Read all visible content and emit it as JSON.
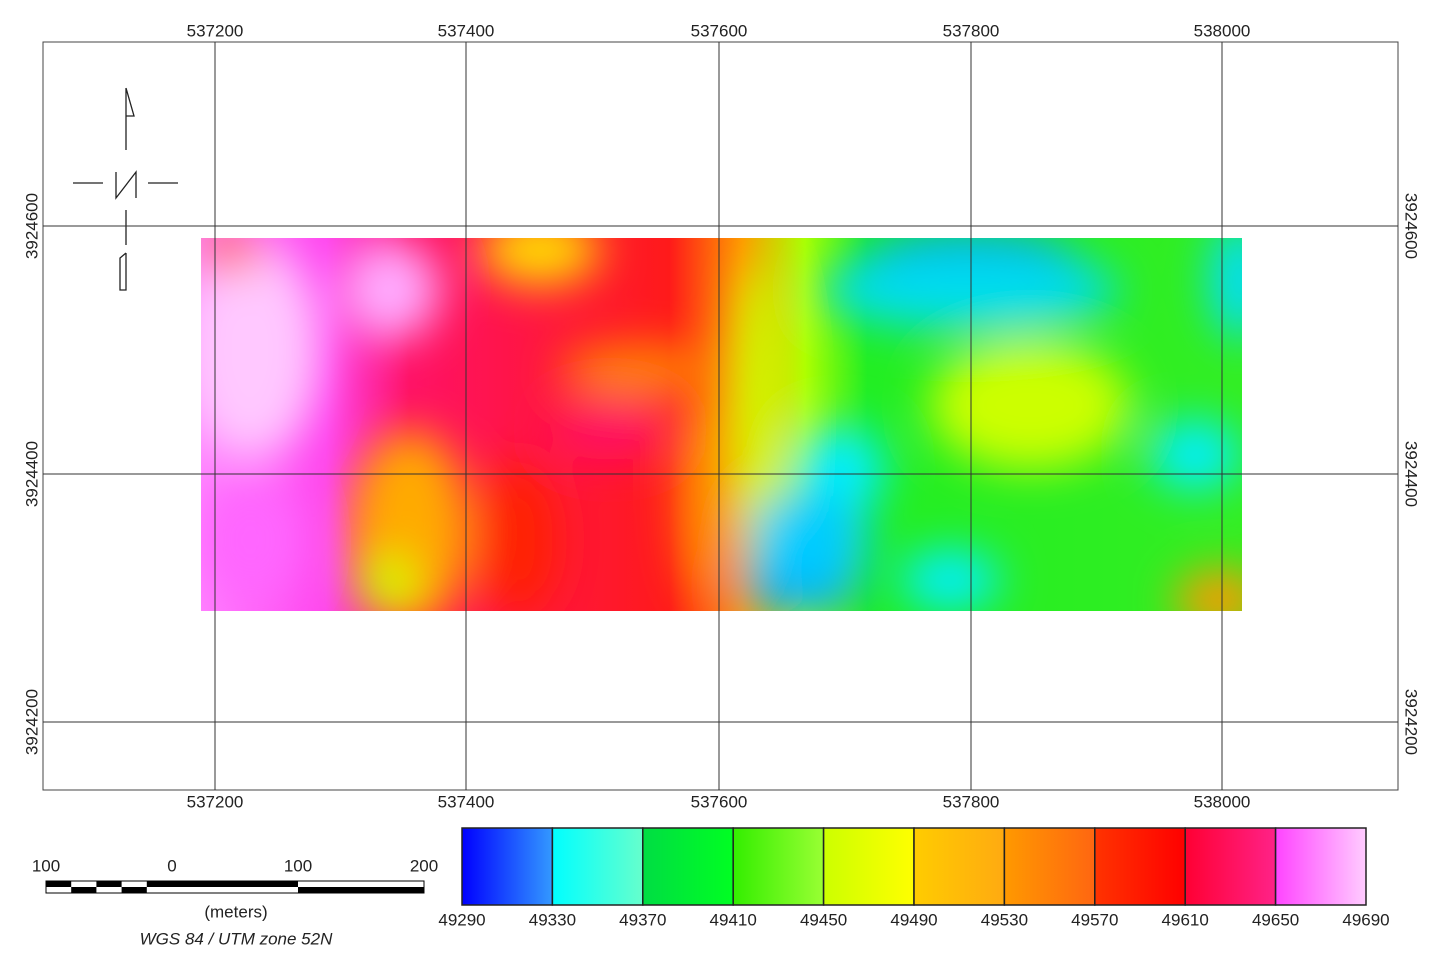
{
  "map": {
    "x_ticks_top": [
      537200,
      537400,
      537600,
      537800,
      538000
    ],
    "x_ticks_bottom": [
      537200,
      537400,
      537600,
      537800,
      538000
    ],
    "y_ticks_left": [
      3924600,
      3924400,
      3924200
    ],
    "y_ticks_right": [
      3924600,
      3924400,
      3924200
    ],
    "legend": {
      "labels": [
        49290,
        49330,
        49370,
        49410,
        49450,
        49490,
        49530,
        49570,
        49610,
        49650,
        49690
      ]
    },
    "scale_bar": {
      "labels": [
        100,
        0,
        100,
        200
      ],
      "unit": "(meters)",
      "projection": "WGS 84 / UTM zone 52N"
    }
  }
}
